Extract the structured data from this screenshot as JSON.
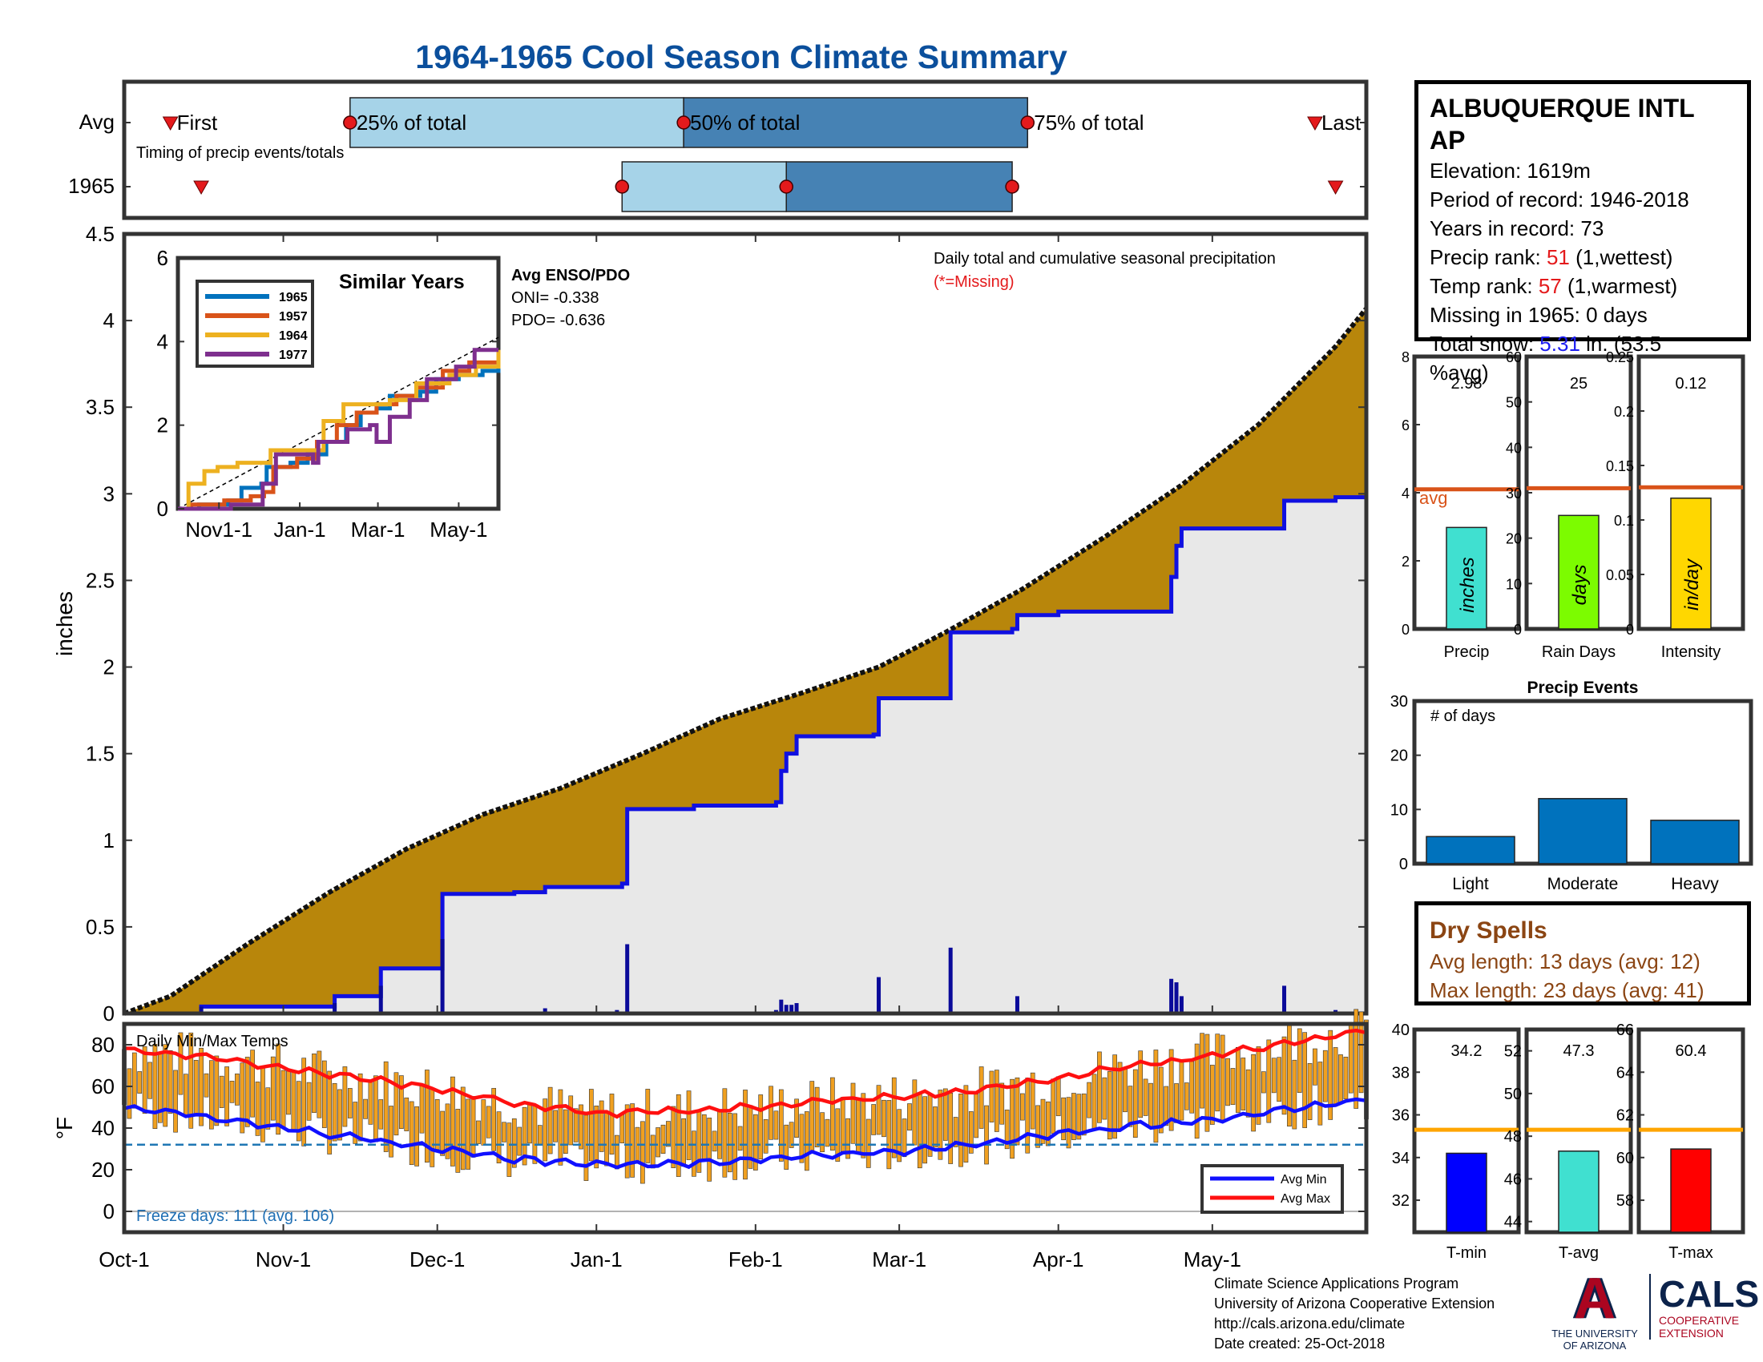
{
  "title": "1964-1965 Cool Season Climate Summary",
  "colors": {
    "precip_fill": "#b8860b",
    "avg_area": "#e8e8e8",
    "season_line": "#1010e0",
    "temp_bar": "#f0a020",
    "avg_min": "#1010ff",
    "avg_max": "#ff1010",
    "marker": "#e41a1c",
    "light_blue": "#a6d3e8",
    "mid_blue": "#4682b4"
  },
  "timing": {
    "row_labels": [
      "Avg",
      "1965"
    ],
    "caption": "Timing of precip events/totals",
    "labels": [
      "First",
      "25% of total",
      "50% of total",
      "75% of total",
      "Last"
    ],
    "avg_dates": [
      "1964-10-10",
      "1964-11-14",
      "1965-01-18",
      "1965-03-26",
      "1965-05-21"
    ],
    "y1965_dates": [
      "1964-10-16",
      "1965-01-06",
      "1965-02-07",
      "1965-03-23",
      "1965-05-25"
    ],
    "x_range": [
      "1964-10-01",
      "1965-05-31"
    ]
  },
  "chart_data": {
    "type": "area",
    "ylabel": "inches",
    "ylim": [
      0,
      4.5
    ],
    "yticks": [
      0,
      0.5,
      1,
      1.5,
      2,
      2.5,
      3,
      3.5,
      4,
      4.5
    ],
    "xtick_labels": [
      "Oct-1",
      "Nov-1",
      "Dec-1",
      "Jan-1",
      "Feb-1",
      "Mar-1",
      "Apr-1",
      "May-1"
    ],
    "xtick_dates": [
      "1964-10-01",
      "1964-11-01",
      "1964-12-01",
      "1965-01-01",
      "1965-02-01",
      "1965-03-01",
      "1965-04-01",
      "1965-05-01"
    ],
    "x_range": [
      "1964-10-01",
      "1965-05-31"
    ],
    "annotation_title": "Daily total and cumulative seasonal precipitation",
    "annotation_missing": "(*=Missing)",
    "enso_title": "Avg ENSO/PDO",
    "oni_text": "ONI= -0.338",
    "pdo_text": "PDO= -0.636",
    "avg_cumulative": {
      "name": "Average cumulative precipitation",
      "points": [
        [
          "1964-10-01",
          0
        ],
        [
          "1964-10-10",
          0.1
        ],
        [
          "1964-10-25",
          0.4
        ],
        [
          "1964-11-10",
          0.7
        ],
        [
          "1964-11-25",
          0.95
        ],
        [
          "1964-12-10",
          1.15
        ],
        [
          "1964-12-25",
          1.3
        ],
        [
          "1965-01-10",
          1.5
        ],
        [
          "1965-01-25",
          1.7
        ],
        [
          "1965-02-10",
          1.85
        ],
        [
          "1965-02-25",
          2.0
        ],
        [
          "1965-03-10",
          2.2
        ],
        [
          "1965-03-25",
          2.45
        ],
        [
          "1965-04-10",
          2.75
        ],
        [
          "1965-04-25",
          3.05
        ],
        [
          "1965-05-10",
          3.4
        ],
        [
          "1965-05-25",
          3.85
        ],
        [
          "1965-05-31",
          4.07
        ]
      ]
    },
    "season_cumulative": {
      "name": "1965 cumulative precipitation",
      "steps": [
        [
          "1964-10-01",
          0
        ],
        [
          "1964-10-16",
          0.04
        ],
        [
          "1964-11-10",
          0.04
        ],
        [
          "1964-11-11",
          0.1
        ],
        [
          "1964-11-19",
          0.1
        ],
        [
          "1964-11-20",
          0.26
        ],
        [
          "1964-12-01",
          0.26
        ],
        [
          "1964-12-02",
          0.69
        ],
        [
          "1964-12-16",
          0.7
        ],
        [
          "1964-12-22",
          0.73
        ],
        [
          "1965-01-06",
          0.75
        ],
        [
          "1965-01-07",
          1.18
        ],
        [
          "1965-01-20",
          1.2
        ],
        [
          "1965-02-05",
          1.22
        ],
        [
          "1965-02-06",
          1.4
        ],
        [
          "1965-02-07",
          1.5
        ],
        [
          "1965-02-09",
          1.6
        ],
        [
          "1965-02-24",
          1.61
        ],
        [
          "1965-02-25",
          1.82
        ],
        [
          "1965-03-10",
          1.82
        ],
        [
          "1965-03-11",
          2.2
        ],
        [
          "1965-03-23",
          2.22
        ],
        [
          "1965-03-24",
          2.3
        ],
        [
          "1965-04-01",
          2.32
        ],
        [
          "1965-04-22",
          2.32
        ],
        [
          "1965-04-23",
          2.52
        ],
        [
          "1965-04-24",
          2.7
        ],
        [
          "1965-04-25",
          2.8
        ],
        [
          "1965-05-14",
          2.8
        ],
        [
          "1965-05-15",
          2.96
        ],
        [
          "1965-05-25",
          2.98
        ],
        [
          "1965-05-31",
          2.98
        ]
      ]
    },
    "daily_bars": [
      [
        "1964-10-16",
        0.04
      ],
      [
        "1964-11-11",
        0.06
      ],
      [
        "1964-11-20",
        0.16
      ],
      [
        "1964-12-02",
        0.43
      ],
      [
        "1964-12-16",
        0.01
      ],
      [
        "1964-12-22",
        0.03
      ],
      [
        "1965-01-05",
        0.02
      ],
      [
        "1965-01-07",
        0.4
      ],
      [
        "1965-02-05",
        0.02
      ],
      [
        "1965-02-06",
        0.08
      ],
      [
        "1965-02-07",
        0.05
      ],
      [
        "1965-02-08",
        0.05
      ],
      [
        "1965-02-09",
        0.06
      ],
      [
        "1965-02-25",
        0.21
      ],
      [
        "1965-03-11",
        0.38
      ],
      [
        "1965-03-24",
        0.1
      ],
      [
        "1965-04-23",
        0.2
      ],
      [
        "1965-04-24",
        0.18
      ],
      [
        "1965-04-25",
        0.1
      ],
      [
        "1965-05-15",
        0.16
      ],
      [
        "1965-05-25",
        0.02
      ]
    ]
  },
  "similar_years": {
    "title": "Similar Years",
    "ylim": [
      0,
      6
    ],
    "yticks": [
      0,
      2,
      4,
      6
    ],
    "xtick_labels": [
      "Nov1-1",
      "Jan-1",
      "Mar-1",
      "May-1"
    ],
    "xtick_days": [
      31,
      92,
      151,
      212
    ],
    "x_max_days": 242,
    "avg_line": [
      [
        0,
        0
      ],
      [
        242,
        4.1
      ]
    ],
    "series": [
      {
        "name": "1965",
        "color": "#0072bd",
        "steps": [
          [
            0,
            0
          ],
          [
            16,
            0
          ],
          [
            16,
            0.1
          ],
          [
            38,
            0.2
          ],
          [
            48,
            0.5
          ],
          [
            63,
            0.6
          ],
          [
            67,
            0.6
          ],
          [
            67,
            1.0
          ],
          [
            85,
            1.1
          ],
          [
            98,
            1.3
          ],
          [
            112,
            1.6
          ],
          [
            127,
            2.0
          ],
          [
            138,
            2.3
          ],
          [
            150,
            2.4
          ],
          [
            160,
            2.7
          ],
          [
            172,
            2.7
          ],
          [
            183,
            2.8
          ],
          [
            192,
            2.8
          ],
          [
            195,
            3.1
          ],
          [
            212,
            3.2
          ],
          [
            230,
            3.3
          ],
          [
            242,
            3.4
          ]
        ]
      },
      {
        "name": "1957",
        "color": "#d95319",
        "steps": [
          [
            0,
            0
          ],
          [
            10,
            0
          ],
          [
            10,
            0.1
          ],
          [
            35,
            0.2
          ],
          [
            55,
            0.3
          ],
          [
            65,
            0.4
          ],
          [
            72,
            1.0
          ],
          [
            90,
            1.2
          ],
          [
            105,
            1.6
          ],
          [
            120,
            2.0
          ],
          [
            135,
            2.3
          ],
          [
            150,
            2.5
          ],
          [
            165,
            2.7
          ],
          [
            180,
            2.9
          ],
          [
            196,
            2.9
          ],
          [
            200,
            3.3
          ],
          [
            220,
            3.5
          ],
          [
            242,
            3.6
          ]
        ]
      },
      {
        "name": "1964",
        "color": "#edb120",
        "steps": [
          [
            0,
            0
          ],
          [
            8,
            0
          ],
          [
            8,
            0.6
          ],
          [
            20,
            0.9
          ],
          [
            30,
            1.0
          ],
          [
            45,
            1.1
          ],
          [
            62,
            1.1
          ],
          [
            70,
            1.4
          ],
          [
            92,
            1.4
          ],
          [
            110,
            2.1
          ],
          [
            125,
            2.5
          ],
          [
            140,
            2.5
          ],
          [
            160,
            2.6
          ],
          [
            178,
            2.6
          ],
          [
            180,
            3.0
          ],
          [
            195,
            3.0
          ],
          [
            205,
            3.2
          ],
          [
            225,
            3.4
          ],
          [
            242,
            3.8
          ]
        ]
      },
      {
        "name": "1977",
        "color": "#7e2f8e",
        "steps": [
          [
            0,
            0
          ],
          [
            40,
            0
          ],
          [
            40,
            0.1
          ],
          [
            62,
            0.1
          ],
          [
            64,
            0.6
          ],
          [
            74,
            1.3
          ],
          [
            95,
            1.3
          ],
          [
            102,
            1.1
          ],
          [
            106,
            1.6
          ],
          [
            120,
            1.6
          ],
          [
            128,
            1.9
          ],
          [
            145,
            2.0
          ],
          [
            150,
            1.6
          ],
          [
            160,
            2.2
          ],
          [
            175,
            2.6
          ],
          [
            185,
            2.6
          ],
          [
            188,
            3.1
          ],
          [
            205,
            3.1
          ],
          [
            210,
            3.4
          ],
          [
            220,
            3.4
          ],
          [
            224,
            3.8
          ],
          [
            242,
            3.8
          ]
        ]
      }
    ]
  },
  "temps": {
    "caption": "Daily Min/Max Temps",
    "ylabel": "°F",
    "yticks": [
      0,
      20,
      40,
      60,
      80
    ],
    "ylim": [
      -10,
      90
    ],
    "freeze_line": 32,
    "freeze_text": "Freeze days: 111 (avg. 106)",
    "legend": [
      "Avg Min",
      "Avg Max"
    ],
    "avg_max_points": [
      [
        0,
        78
      ],
      [
        20,
        73
      ],
      [
        40,
        66
      ],
      [
        61,
        59
      ],
      [
        76,
        52
      ],
      [
        92,
        47
      ],
      [
        107,
        48
      ],
      [
        122,
        50
      ],
      [
        137,
        53
      ],
      [
        151,
        55
      ],
      [
        166,
        58
      ],
      [
        182,
        64
      ],
      [
        197,
        70
      ],
      [
        212,
        75
      ],
      [
        227,
        81
      ],
      [
        242,
        87
      ]
    ],
    "avg_min_points": [
      [
        0,
        50
      ],
      [
        20,
        44
      ],
      [
        40,
        37
      ],
      [
        61,
        30
      ],
      [
        76,
        25
      ],
      [
        92,
        23
      ],
      [
        107,
        23
      ],
      [
        122,
        25
      ],
      [
        137,
        27
      ],
      [
        151,
        29
      ],
      [
        166,
        32
      ],
      [
        182,
        37
      ],
      [
        197,
        41
      ],
      [
        212,
        44
      ],
      [
        227,
        49
      ],
      [
        242,
        54
      ]
    ]
  },
  "station": {
    "name": "ALBUQUERQUE INTL AP",
    "elevation": "Elevation: 1619m",
    "period": "Period of record: 1946-2018",
    "years": "Years in record: 73",
    "precip_rank_label": "Precip rank: ",
    "precip_rank_value": "51",
    "precip_rank_note": " (1,wettest)",
    "temp_rank_label": "Temp rank: ",
    "temp_rank_value": "57",
    "temp_rank_note": " (1,warmest)",
    "missing": "Missing in 1965: 0 days",
    "snow_label": "Total snow: ",
    "snow_value": "5.31",
    "snow_note": " in. (53.5",
    "snow_pct": "%avg)"
  },
  "mini_bars": [
    {
      "xlabel": "Precip",
      "value_label": "2.98",
      "value": 2.98,
      "avg": 4.1,
      "ymax": 8,
      "yticks": [
        0,
        2,
        4,
        6,
        8
      ],
      "unit": "inches",
      "color": "#40e0d0",
      "avg_label": "avg"
    },
    {
      "xlabel": "Rain Days",
      "value_label": "25",
      "value": 25,
      "avg": 31,
      "ymax": 60,
      "yticks": [
        0,
        10,
        20,
        30,
        40,
        50,
        60
      ],
      "unit": "days",
      "color": "#7cfc00"
    },
    {
      "xlabel": "Intensity",
      "value_label": "0.12",
      "value": 0.12,
      "avg": 0.13,
      "ymax": 0.25,
      "yticks": [
        0,
        0.05,
        0.1,
        0.15,
        0.2,
        0.25
      ],
      "unit": "in/day",
      "color": "#ffd700"
    }
  ],
  "precip_events": {
    "title": "Precip Events",
    "caption": "# of days",
    "categories": [
      "Light",
      "Moderate",
      "Heavy"
    ],
    "values": [
      5,
      12,
      8
    ],
    "ylim": [
      0,
      30
    ],
    "yticks": [
      0,
      10,
      20,
      30
    ],
    "color": "#0072bd"
  },
  "dry_spells": {
    "title": "Dry Spells",
    "avg_length": "Avg length: 13 days (avg: 12)",
    "max_length": "Max length: 23 days (avg: 41)"
  },
  "temp_bars": [
    {
      "xlabel": "T-min",
      "value_label": "34.2",
      "value": 34.2,
      "avg": 35.3,
      "ymin": 30.5,
      "ymax": 40,
      "yticks": [
        32,
        34,
        36,
        38,
        40
      ],
      "color": "#0000ff"
    },
    {
      "xlabel": "T-avg",
      "value_label": "47.3",
      "value": 47.3,
      "avg": 48.3,
      "ymin": 43.5,
      "ymax": 53,
      "yticks": [
        44,
        46,
        48,
        50,
        52
      ],
      "color": "#40e0d0"
    },
    {
      "xlabel": "T-max",
      "value_label": "60.4",
      "value": 60.4,
      "avg": 61.3,
      "ymin": 56.5,
      "ymax": 66,
      "yticks": [
        58,
        60,
        62,
        64,
        66
      ],
      "color": "#ff0000"
    }
  ],
  "footer": {
    "line1": "Climate Science Applications Program",
    "line2": "University of Arizona Cooperative Extension",
    "line3": "http://cals.arizona.edu/climate",
    "line4": " Date created: 25-Oct-2018"
  },
  "logos": {
    "ua_letter": "A",
    "ua_line1": "THE UNIVERSITY",
    "ua_line2": "OF ARIZONA",
    "cals": "CALS",
    "cals_line1": "COOPERATIVE",
    "cals_line2": "EXTENSION"
  }
}
